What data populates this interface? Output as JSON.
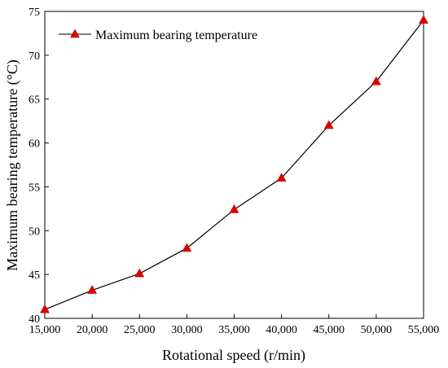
{
  "chart_data": {
    "type": "line",
    "xlabel": "Rotational speed (r/min)",
    "ylabel": "Maximum bearing temperature (°C)",
    "xlim": [
      15000,
      55000
    ],
    "ylim": [
      40,
      75
    ],
    "x_ticks": [
      15000,
      20000,
      25000,
      30000,
      35000,
      40000,
      45000,
      50000,
      55000
    ],
    "x_tick_labels": [
      "15,000",
      "20,000",
      "25,000",
      "30,000",
      "35,000",
      "40,000",
      "45,000",
      "50,000",
      "55,000"
    ],
    "y_ticks": [
      40,
      45,
      50,
      55,
      60,
      65,
      70,
      75
    ],
    "y_tick_labels": [
      "40",
      "45",
      "50",
      "55",
      "60",
      "65",
      "70",
      "75"
    ],
    "grid": false,
    "legend_position": "top-left",
    "series": [
      {
        "name": "Maximum bearing temperature",
        "color": "#e00000",
        "marker": "triangle",
        "x": [
          15000,
          20000,
          25000,
          30000,
          35000,
          40000,
          45000,
          50000,
          55000
        ],
        "y": [
          41.0,
          43.2,
          45.1,
          48.0,
          52.4,
          56.0,
          62.0,
          67.0,
          74.0
        ]
      }
    ]
  }
}
